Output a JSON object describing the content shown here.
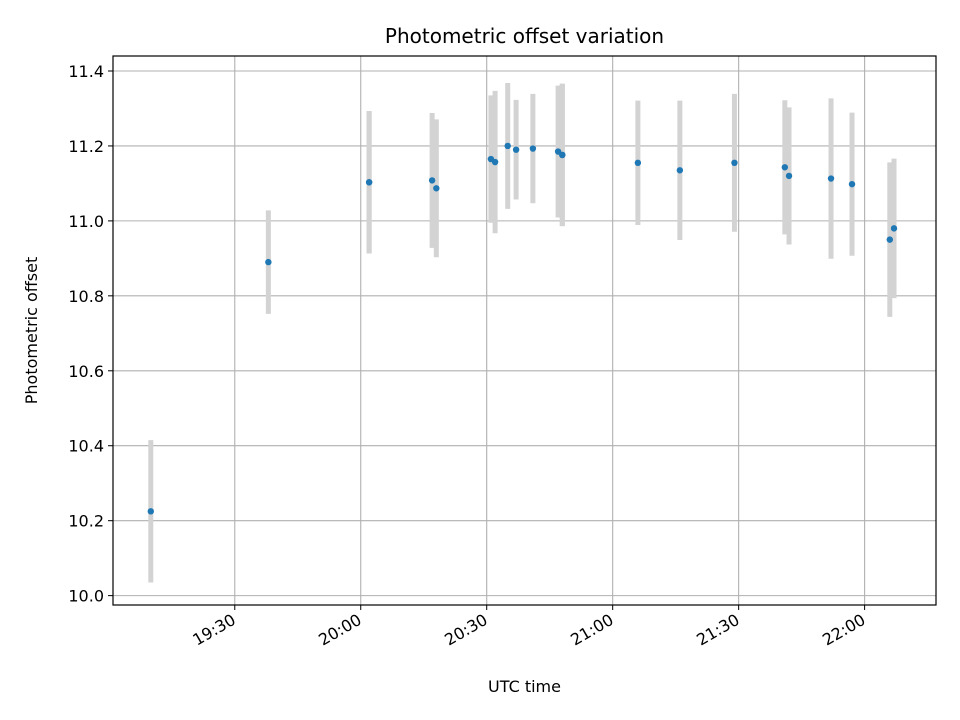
{
  "chart_data": {
    "type": "scatter",
    "title": "Photometric offset variation",
    "xlabel": "UTC time",
    "ylabel": "Photometric offset",
    "xlim": [
      "19:01",
      "22:17"
    ],
    "ylim": [
      9.975,
      11.44
    ],
    "x_ticks": [
      "19:30",
      "20:00",
      "20:30",
      "21:00",
      "21:30",
      "22:00"
    ],
    "y_ticks": [
      "10.0",
      "10.2",
      "10.4",
      "10.6",
      "10.8",
      "11.0",
      "11.2",
      "11.4"
    ],
    "grid": true,
    "errorbar_color": "#d3d3d3",
    "marker_color": "#1f77b4",
    "points": [
      {
        "t": "19:10",
        "y": 10.225,
        "err": 0.19
      },
      {
        "t": "19:38",
        "y": 10.89,
        "err": 0.138
      },
      {
        "t": "20:02",
        "y": 11.103,
        "err": 0.19
      },
      {
        "t": "20:02",
        "y": 11.103,
        "err": 0.19
      },
      {
        "t": "20:17",
        "y": 11.108,
        "err": 0.18
      },
      {
        "t": "20:18",
        "y": 11.087,
        "err": 0.184
      },
      {
        "t": "20:31",
        "y": 11.165,
        "err": 0.17
      },
      {
        "t": "20:32",
        "y": 11.157,
        "err": 0.19
      },
      {
        "t": "20:35",
        "y": 11.2,
        "err": 0.168
      },
      {
        "t": "20:37",
        "y": 11.19,
        "err": 0.133
      },
      {
        "t": "20:41",
        "y": 11.193,
        "err": 0.146
      },
      {
        "t": "20:47",
        "y": 11.185,
        "err": 0.176
      },
      {
        "t": "20:48",
        "y": 11.176,
        "err": 0.19
      },
      {
        "t": "20:48",
        "y": 11.176,
        "err": 0.19
      },
      {
        "t": "21:06",
        "y": 11.155,
        "err": 0.166
      },
      {
        "t": "21:16",
        "y": 11.135,
        "err": 0.186
      },
      {
        "t": "21:29",
        "y": 11.155,
        "err": 0.184
      },
      {
        "t": "21:41",
        "y": 11.143,
        "err": 0.179
      },
      {
        "t": "21:42",
        "y": 11.12,
        "err": 0.183
      },
      {
        "t": "21:52",
        "y": 11.113,
        "err": 0.214
      },
      {
        "t": "21:57",
        "y": 11.098,
        "err": 0.191
      },
      {
        "t": "22:06",
        "y": 10.95,
        "err": 0.206
      },
      {
        "t": "22:07",
        "y": 10.98,
        "err": 0.186
      }
    ]
  }
}
